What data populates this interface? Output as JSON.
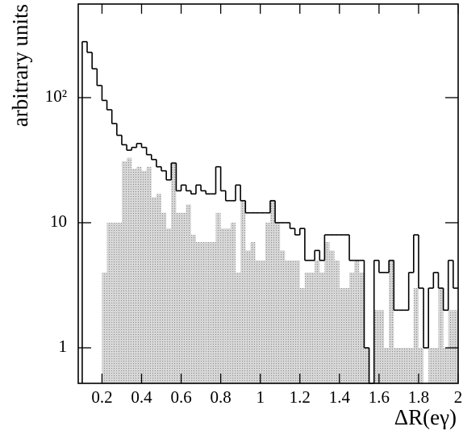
{
  "chart_data": {
    "type": "histogram",
    "xlabel": "ΔR(eγ)",
    "ylabel": "arbitrary units",
    "bins": [
      0.1,
      0.125,
      0.15,
      0.175,
      0.2,
      0.225,
      0.25,
      0.275,
      0.3,
      0.325,
      0.35,
      0.375,
      0.4,
      0.425,
      0.45,
      0.475,
      0.5,
      0.525,
      0.55,
      0.575,
      0.6,
      0.625,
      0.65,
      0.675,
      0.7,
      0.725,
      0.75,
      0.775,
      0.8,
      0.825,
      0.85,
      0.875,
      0.9,
      0.925,
      0.95,
      0.975,
      1.0,
      1.025,
      1.05,
      1.075,
      1.1,
      1.125,
      1.15,
      1.175,
      1.2,
      1.225,
      1.25,
      1.275,
      1.3,
      1.325,
      1.35,
      1.375,
      1.4,
      1.425,
      1.45,
      1.475,
      1.5,
      1.525,
      1.55,
      1.575,
      1.6,
      1.625,
      1.65,
      1.675,
      1.7,
      1.725,
      1.75,
      1.775,
      1.8,
      1.825,
      1.85,
      1.875,
      1.9,
      1.925,
      1.95,
      1.975,
      2.0
    ],
    "series": [
      {
        "color": "#000000",
        "style": "outline",
        "values": [
          280,
          230,
          170,
          125,
          95,
          80,
          62,
          50,
          42,
          38,
          40,
          43,
          40,
          35,
          32,
          28,
          26,
          22,
          30,
          18,
          20,
          18,
          17,
          20,
          18,
          17,
          17,
          28,
          18,
          15,
          15,
          20,
          15,
          12,
          12,
          12,
          12,
          12,
          15,
          10,
          10,
          10,
          9,
          8,
          9,
          5,
          5,
          6,
          5,
          8,
          8,
          8,
          8,
          8,
          5,
          5,
          5,
          1,
          0,
          5,
          4,
          4,
          5,
          2,
          2,
          2,
          4,
          8,
          3,
          1,
          3,
          4,
          3,
          2,
          5,
          3
        ]
      },
      {
        "color": "#c4c4c4",
        "style": "filled",
        "values": [
          0,
          0,
          0,
          0,
          4,
          10,
          10,
          10,
          31,
          33,
          27,
          28,
          26,
          28,
          16,
          17,
          12,
          9,
          30,
          12,
          12,
          14,
          8,
          7,
          7,
          7,
          7,
          12,
          9,
          9,
          10,
          4,
          15,
          6,
          7,
          5,
          5,
          10,
          15,
          10,
          6,
          5,
          5,
          5,
          3,
          4,
          4,
          5,
          4,
          7,
          6,
          5,
          3,
          3,
          4,
          5,
          4,
          1,
          0,
          2,
          2,
          1,
          5,
          1,
          1,
          1,
          1,
          3,
          1,
          0,
          1,
          1,
          3,
          1,
          2,
          2
        ]
      }
    ],
    "xlim": [
      0.08,
      2.0
    ],
    "xticks": [
      0.2,
      0.4,
      0.6,
      0.8,
      1,
      1.2,
      1.4,
      1.6,
      1.8,
      2
    ],
    "ylim": [
      0.52,
      560
    ],
    "yscale": "log",
    "yticks": [
      1,
      10,
      {
        "value": 100,
        "label": "10²"
      }
    ]
  }
}
